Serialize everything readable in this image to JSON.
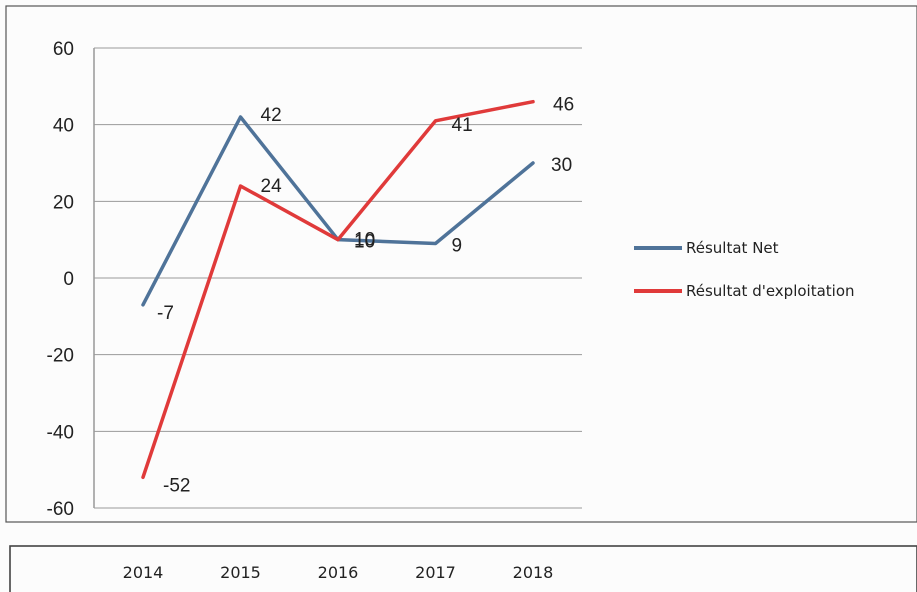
{
  "chart_data": {
    "type": "line",
    "categories": [
      "2014",
      "2015",
      "2016",
      "2017",
      "2018"
    ],
    "series": [
      {
        "name": "Résultat Net",
        "color": "#4f7399",
        "values": [
          -7,
          42,
          10,
          9,
          30
        ],
        "labels": [
          "-7",
          "42",
          "10",
          "9",
          "30"
        ]
      },
      {
        "name": "Résultat d'exploitation",
        "color": "#e03a3a",
        "values": [
          -52,
          24,
          10,
          41,
          46
        ],
        "labels": [
          "-52",
          "24",
          "10",
          "41",
          "46"
        ]
      }
    ],
    "ylim": [
      -60,
      60
    ],
    "yticks": [
      60,
      40,
      20,
      0,
      -20,
      -40,
      -60
    ],
    "grid": true,
    "legend": "right",
    "title": "",
    "xlabel": "",
    "ylabel": ""
  }
}
